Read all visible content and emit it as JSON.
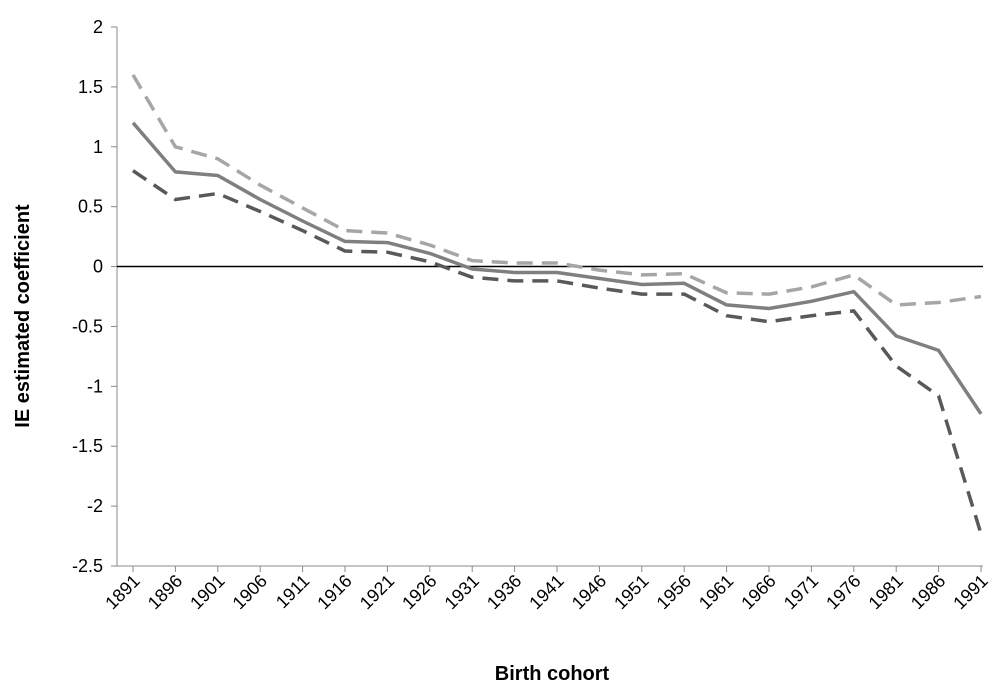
{
  "chart_data": {
    "type": "line",
    "title": "",
    "xlabel": "Birth cohort",
    "ylabel": "IE estimated coefficient",
    "x": [
      "1891",
      "1896",
      "1901",
      "1906",
      "1911",
      "1916",
      "1921",
      "1926",
      "1931",
      "1936",
      "1941",
      "1946",
      "1951",
      "1956",
      "1961",
      "1966",
      "1971",
      "1976",
      "1981",
      "1986",
      "1991"
    ],
    "ylim": [
      -2.5,
      2
    ],
    "yticks": [
      2,
      1.5,
      1,
      0.5,
      0,
      -0.5,
      -1,
      -1.5,
      -2,
      -2.5
    ],
    "ytick_labels": [
      "2",
      "1.5",
      "1",
      "0.5",
      "0",
      "-0.5",
      "-1",
      "-1.5",
      "-2",
      "-2.5"
    ],
    "grid": false,
    "zero_line": true,
    "series": [
      {
        "style": "dashed",
        "color": "#a6a6a6",
        "values": [
          1.6,
          1.0,
          0.9,
          0.68,
          0.49,
          0.3,
          0.28,
          0.18,
          0.05,
          0.03,
          0.03,
          -0.03,
          -0.07,
          -0.06,
          -0.22,
          -0.23,
          -0.17,
          -0.07,
          -0.32,
          -0.3,
          -0.25
        ]
      },
      {
        "style": "solid",
        "color": "#7f7f7f",
        "values": [
          1.2,
          0.79,
          0.76,
          0.56,
          0.38,
          0.21,
          0.2,
          0.11,
          -0.02,
          -0.05,
          -0.05,
          -0.1,
          -0.15,
          -0.14,
          -0.32,
          -0.35,
          -0.29,
          -0.21,
          -0.58,
          -0.7,
          -1.23
        ]
      },
      {
        "style": "dashed",
        "color": "#595959",
        "values": [
          0.8,
          0.56,
          0.61,
          0.46,
          0.3,
          0.13,
          0.12,
          0.04,
          -0.09,
          -0.12,
          -0.12,
          -0.18,
          -0.23,
          -0.23,
          -0.41,
          -0.46,
          -0.41,
          -0.37,
          -0.83,
          -1.08,
          -2.23
        ]
      }
    ]
  }
}
